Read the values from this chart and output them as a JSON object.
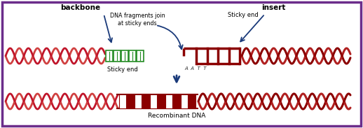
{
  "bg_color": "#ffffff",
  "border_color": "#6b2d8b",
  "dna_red": "#c0152a",
  "dna_red_light": "#d04040",
  "insert_dark": "#8b0000",
  "green": "#228B22",
  "text_color": "#000000",
  "arrow_color": "#1a3a7a",
  "figsize": [
    5.18,
    1.83
  ],
  "dpi": 100,
  "labels": {
    "backbone": "backbone",
    "insert": "insert",
    "dna_join": "DNA fragments join\nat sticky ends",
    "sticky_end_top": "Sticky end",
    "sticky_end_bot": "Sticky end",
    "recombinant": "Recombinant DNA",
    "aatt": "A A T T"
  }
}
